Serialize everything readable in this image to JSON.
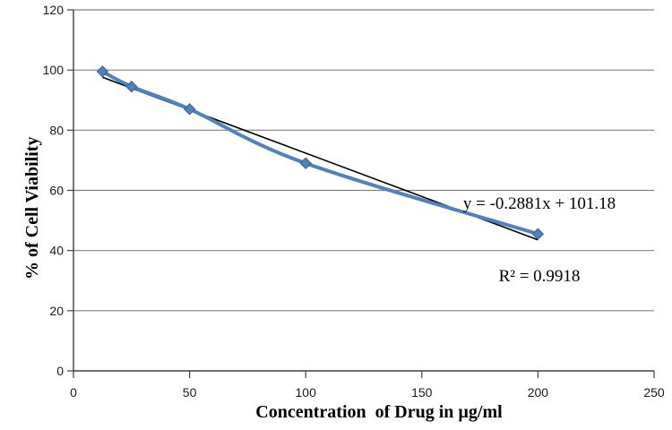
{
  "figure": {
    "background": "#ffffff",
    "ylabel": "% of Cell Viability",
    "xlabel": "Concentration  of Drug in µg/ml",
    "annotation": {
      "equation": "y = -0.2881x + 101.18",
      "r_squared": "R² = 0.9918"
    }
  },
  "chart_data": {
    "type": "line",
    "x": [
      12.5,
      25,
      50,
      100,
      200
    ],
    "y": [
      99.5,
      94.5,
      87,
      69,
      45.5
    ],
    "marker": "diamond",
    "line_color": "#4f81bd",
    "marker_edge_color": "#38608e",
    "trendline": {
      "type": "linear",
      "slope": -0.2881,
      "intercept": 101.18,
      "r2": 0.9918,
      "x_start": 12.5,
      "x_end": 200,
      "color": "#000000"
    },
    "title": "",
    "xlabel": "Concentration  of Drug in µg/ml",
    "ylabel": "% of Cell Viability",
    "xlim": [
      0,
      250
    ],
    "ylim": [
      0,
      120
    ],
    "x_ticks": [
      0,
      50,
      100,
      150,
      200,
      250
    ],
    "y_ticks": [
      0,
      20,
      40,
      60,
      80,
      100,
      120
    ],
    "grid": "horizontal",
    "gridline_color": "#808080",
    "axis_color": "#404040",
    "tick_label_color": "#1a1a1a",
    "legend": "none"
  }
}
